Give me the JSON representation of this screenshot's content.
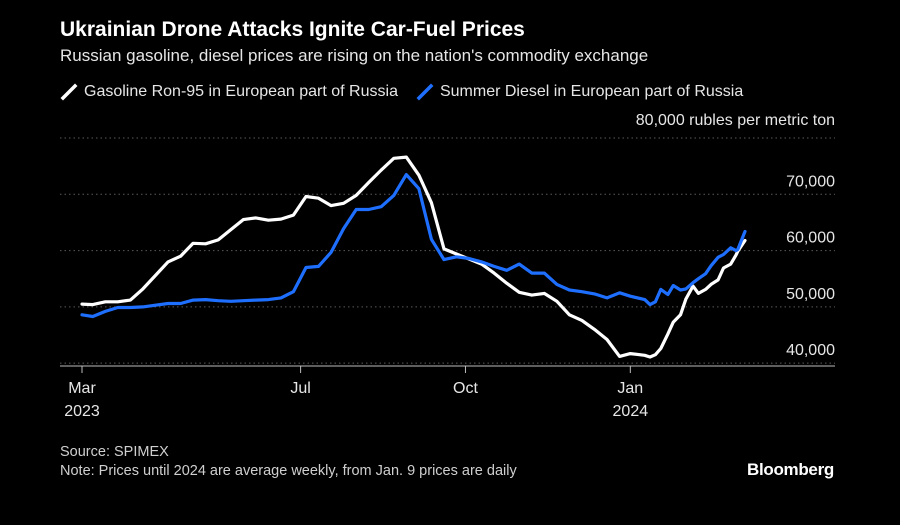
{
  "header": {
    "title": "Ukrainian Drone Attacks Ignite Car-Fuel Prices",
    "subtitle": "Russian gasoline, diesel prices are rising on the nation's commodity exchange"
  },
  "unit_label": "80,000 rubles per metric ton",
  "footer": {
    "source": "Source: SPIMEX",
    "note": "Note: Prices until 2024 are average weekly, from Jan. 9 prices are daily"
  },
  "brand": "Bloomberg",
  "chart_data": {
    "type": "line",
    "title": "Ukrainian Drone Attacks Ignite Car-Fuel Prices",
    "subtitle": "Russian gasoline, diesel prices are rising on the nation's commodity exchange",
    "ylabel": "80,000 rubles per metric ton",
    "xlim": [
      "2023-03-01",
      "2024-03-05"
    ],
    "ylim": [
      39500,
      80000
    ],
    "yticks": [
      40000,
      50000,
      60000,
      70000,
      80000
    ],
    "ytick_labels": [
      "40,000",
      "50,000",
      "60,000",
      "70,000",
      ""
    ],
    "xticks": [
      {
        "date": "2023-03-01",
        "label": "Mar",
        "sublabel": "2023"
      },
      {
        "date": "2023-07-01",
        "label": "Jul",
        "sublabel": ""
      },
      {
        "date": "2023-10-01",
        "label": "Oct",
        "sublabel": ""
      },
      {
        "date": "2024-01-01",
        "label": "Jan",
        "sublabel": "2024"
      }
    ],
    "grid": true,
    "legend_position": "top-left",
    "series": [
      {
        "name": "Gasoline Ron-95 in European part of Russia",
        "color": "#ffffff",
        "points": [
          [
            "2023-03-01",
            50500
          ],
          [
            "2023-03-07",
            50400
          ],
          [
            "2023-03-14",
            50900
          ],
          [
            "2023-03-21",
            50900
          ],
          [
            "2023-03-28",
            51200
          ],
          [
            "2023-04-04",
            53200
          ],
          [
            "2023-04-11",
            55600
          ],
          [
            "2023-04-18",
            58000
          ],
          [
            "2023-04-25",
            59000
          ],
          [
            "2023-05-02",
            61300
          ],
          [
            "2023-05-09",
            61200
          ],
          [
            "2023-05-16",
            61900
          ],
          [
            "2023-05-23",
            63700
          ],
          [
            "2023-05-30",
            65500
          ],
          [
            "2023-06-06",
            65800
          ],
          [
            "2023-06-13",
            65400
          ],
          [
            "2023-06-20",
            65600
          ],
          [
            "2023-06-27",
            66300
          ],
          [
            "2023-07-04",
            69600
          ],
          [
            "2023-07-11",
            69300
          ],
          [
            "2023-07-18",
            68000
          ],
          [
            "2023-07-25",
            68400
          ],
          [
            "2023-08-01",
            69800
          ],
          [
            "2023-08-08",
            72100
          ],
          [
            "2023-08-15",
            74300
          ],
          [
            "2023-08-22",
            76400
          ],
          [
            "2023-08-29",
            76600
          ],
          [
            "2023-09-05",
            73400
          ],
          [
            "2023-09-12",
            68500
          ],
          [
            "2023-09-19",
            60300
          ],
          [
            "2023-09-26",
            59400
          ],
          [
            "2023-10-03",
            58500
          ],
          [
            "2023-10-10",
            57600
          ],
          [
            "2023-10-17",
            56000
          ],
          [
            "2023-10-24",
            54200
          ],
          [
            "2023-10-31",
            52600
          ],
          [
            "2023-11-07",
            52100
          ],
          [
            "2023-11-14",
            52400
          ],
          [
            "2023-11-21",
            51000
          ],
          [
            "2023-11-28",
            48600
          ],
          [
            "2023-12-05",
            47600
          ],
          [
            "2023-12-12",
            46000
          ],
          [
            "2023-12-19",
            44200
          ],
          [
            "2023-12-26",
            41200
          ],
          [
            "2024-01-01",
            41700
          ],
          [
            "2024-01-09",
            41400
          ],
          [
            "2024-01-12",
            41100
          ],
          [
            "2024-01-15",
            41500
          ],
          [
            "2024-01-18",
            42600
          ],
          [
            "2024-01-22",
            45200
          ],
          [
            "2024-01-25",
            47300
          ],
          [
            "2024-01-29",
            48600
          ],
          [
            "2024-02-01",
            51400
          ],
          [
            "2024-02-05",
            53700
          ],
          [
            "2024-02-08",
            52400
          ],
          [
            "2024-02-12",
            53100
          ],
          [
            "2024-02-15",
            54000
          ],
          [
            "2024-02-19",
            54800
          ],
          [
            "2024-02-22",
            56900
          ],
          [
            "2024-02-26",
            57600
          ],
          [
            "2024-02-29",
            59200
          ],
          [
            "2024-03-01",
            59900
          ],
          [
            "2024-03-05",
            61800
          ]
        ]
      },
      {
        "name": "Summer Diesel in European part of Russia",
        "color": "#1f6fff",
        "points": [
          [
            "2023-03-01",
            48600
          ],
          [
            "2023-03-07",
            48300
          ],
          [
            "2023-03-14",
            49200
          ],
          [
            "2023-03-21",
            49900
          ],
          [
            "2023-03-28",
            49900
          ],
          [
            "2023-04-04",
            50000
          ],
          [
            "2023-04-11",
            50300
          ],
          [
            "2023-04-18",
            50600
          ],
          [
            "2023-04-25",
            50600
          ],
          [
            "2023-05-02",
            51200
          ],
          [
            "2023-05-09",
            51300
          ],
          [
            "2023-05-16",
            51100
          ],
          [
            "2023-05-23",
            51000
          ],
          [
            "2023-05-30",
            51100
          ],
          [
            "2023-06-06",
            51200
          ],
          [
            "2023-06-13",
            51300
          ],
          [
            "2023-06-20",
            51600
          ],
          [
            "2023-06-27",
            52700
          ],
          [
            "2023-07-04",
            57000
          ],
          [
            "2023-07-11",
            57200
          ],
          [
            "2023-07-18",
            59700
          ],
          [
            "2023-07-25",
            63900
          ],
          [
            "2023-08-01",
            67300
          ],
          [
            "2023-08-08",
            67300
          ],
          [
            "2023-08-15",
            67800
          ],
          [
            "2023-08-22",
            69800
          ],
          [
            "2023-08-29",
            73500
          ],
          [
            "2023-09-05",
            71000
          ],
          [
            "2023-09-12",
            62000
          ],
          [
            "2023-09-19",
            58400
          ],
          [
            "2023-09-26",
            58900
          ],
          [
            "2023-10-03",
            58600
          ],
          [
            "2023-10-10",
            58000
          ],
          [
            "2023-10-17",
            57200
          ],
          [
            "2023-10-24",
            56500
          ],
          [
            "2023-10-31",
            57600
          ],
          [
            "2023-11-07",
            56000
          ],
          [
            "2023-11-14",
            56000
          ],
          [
            "2023-11-21",
            54000
          ],
          [
            "2023-11-28",
            53000
          ],
          [
            "2023-12-05",
            52700
          ],
          [
            "2023-12-12",
            52300
          ],
          [
            "2023-12-19",
            51600
          ],
          [
            "2023-12-26",
            52500
          ],
          [
            "2024-01-01",
            51900
          ],
          [
            "2024-01-09",
            51300
          ],
          [
            "2024-01-12",
            50400
          ],
          [
            "2024-01-15",
            50900
          ],
          [
            "2024-01-18",
            53100
          ],
          [
            "2024-01-22",
            52200
          ],
          [
            "2024-01-25",
            53800
          ],
          [
            "2024-01-29",
            53000
          ],
          [
            "2024-02-01",
            53200
          ],
          [
            "2024-02-05",
            54300
          ],
          [
            "2024-02-08",
            55000
          ],
          [
            "2024-02-12",
            55900
          ],
          [
            "2024-02-15",
            57300
          ],
          [
            "2024-02-19",
            58800
          ],
          [
            "2024-02-22",
            59300
          ],
          [
            "2024-02-26",
            60500
          ],
          [
            "2024-02-29",
            60000
          ],
          [
            "2024-03-01",
            60200
          ],
          [
            "2024-03-05",
            63400
          ]
        ]
      }
    ]
  }
}
